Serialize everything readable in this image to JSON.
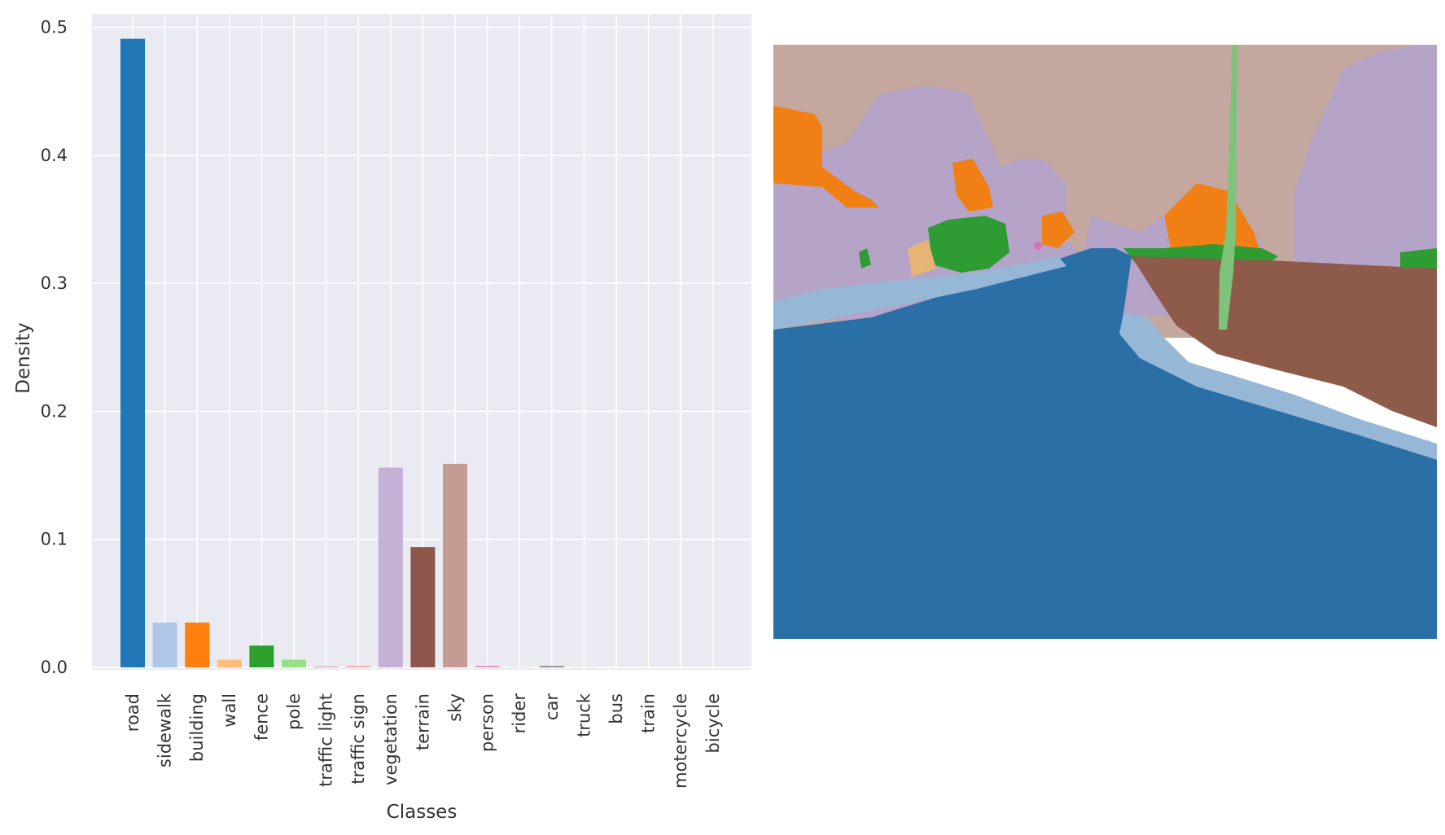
{
  "chart_data": {
    "type": "bar",
    "xlabel": "Classes",
    "ylabel": "Density",
    "ylim": [
      0,
      0.52
    ],
    "y_ticks": [
      "0.0",
      "0.1",
      "0.2",
      "0.3",
      "0.4",
      "0.5"
    ],
    "grid": true,
    "categories": [
      "road",
      "sidewalk",
      "building",
      "wall",
      "fence",
      "pole",
      "traffic light",
      "traffic sign",
      "vegetation",
      "terrain",
      "sky",
      "person",
      "rider",
      "car",
      "truck",
      "bus",
      "train",
      "motercycle",
      "bicycle"
    ],
    "values": [
      0.491,
      0.035,
      0.035,
      0.006,
      0.017,
      0.006,
      0.0003,
      0.001,
      0.156,
      0.094,
      0.159,
      0.001,
      0.0002,
      0.001,
      0.0001,
      0.0,
      0.0,
      0.0,
      0.0
    ],
    "colors": [
      "#1f77b4",
      "#aec7e8",
      "#ff7f0e",
      "#ffbb78",
      "#2ca02c",
      "#98df8a",
      "#d62728",
      "#ff9896",
      "#c5b0d5",
      "#8c564b",
      "#c49c94",
      "#e377c2",
      "#f7b6d2",
      "#7f7f7f",
      "#c7c7c7",
      "#bcbd22",
      "#dbdb8d",
      "#17becf",
      "#9edae5"
    ]
  },
  "segmentation_image": {
    "classes_visible": [
      "sky",
      "vegetation",
      "building",
      "road",
      "sidewalk",
      "terrain",
      "fence",
      "pole",
      "wall",
      "person"
    ]
  }
}
